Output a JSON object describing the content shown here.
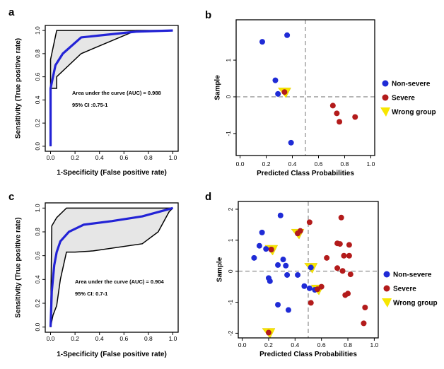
{
  "chart_data": [
    {
      "panel": "a",
      "type": "line",
      "title": "",
      "xlabel": "1-Specificity (False positive rate)",
      "ylabel": "Sensitivity (True positive rate)",
      "xlim": [
        0,
        1
      ],
      "ylim": [
        0,
        1
      ],
      "xticks": [
        "0.0",
        "0.2",
        "0.4",
        "0.6",
        "0.8",
        "1.0"
      ],
      "yticks": [
        "0.0",
        "0.2",
        "0.4",
        "0.6",
        "0.8",
        "1.0"
      ],
      "annotations": [
        "Area under the curve (AUC) = 0.988",
        "95% CI :0.75-1"
      ],
      "roc": [
        [
          0.0,
          0.0
        ],
        [
          0.0,
          0.5
        ],
        [
          0.02,
          0.6
        ],
        [
          0.04,
          0.7
        ],
        [
          0.1,
          0.8
        ],
        [
          0.25,
          0.94
        ],
        [
          0.7,
          0.99
        ],
        [
          1.0,
          1.0
        ]
      ],
      "ci_upper": [
        [
          0.0,
          0.0
        ],
        [
          0.0,
          0.75
        ],
        [
          0.05,
          1.0
        ],
        [
          1.0,
          1.0
        ]
      ],
      "ci_lower": [
        [
          0.0,
          0.0
        ],
        [
          0.0,
          0.5
        ],
        [
          0.03,
          0.5
        ],
        [
          0.05,
          0.5
        ],
        [
          0.05,
          0.6
        ],
        [
          0.25,
          0.8
        ],
        [
          0.7,
          1.0
        ],
        [
          1.0,
          1.0
        ]
      ],
      "roc_color": "#2323d6",
      "band_fill": "#e6e6e6"
    },
    {
      "panel": "b",
      "type": "scatter",
      "title": "",
      "xlabel": "Predicted Class Probabilities",
      "ylabel": "Sample",
      "xlim": [
        -0.03,
        1.03
      ],
      "ylim": [
        -1.6,
        2.1
      ],
      "xticks": [
        "0.0",
        "0.2",
        "0.4",
        "0.6",
        "0.8",
        "1.0"
      ],
      "yticks": [
        "-1",
        "0",
        "1"
      ],
      "legend": [
        "Non-severe",
        "Severe",
        "Wrong group"
      ],
      "legend_position": "right",
      "colors": {
        "non_severe": "#1f2bd6",
        "severe": "#b31b1b",
        "wrong": "#f7e600"
      },
      "vline": 0.5,
      "hline": 0,
      "non_severe": [
        [
          0.17,
          1.5
        ],
        [
          0.36,
          1.68
        ],
        [
          0.27,
          0.45
        ],
        [
          0.29,
          0.08
        ],
        [
          0.39,
          -1.25
        ]
      ],
      "severe": [
        [
          0.71,
          -0.24
        ],
        [
          0.74,
          -0.45
        ],
        [
          0.76,
          -0.68
        ],
        [
          0.88,
          -0.55
        ],
        [
          0.34,
          0.13
        ]
      ],
      "wrong_group": [
        [
          0.34,
          0.13
        ]
      ]
    },
    {
      "panel": "c",
      "type": "line",
      "title": "",
      "xlabel": "1-Specificity (False positive rate)",
      "ylabel": "Sensitivity (True positive rate)",
      "xlim": [
        0,
        1
      ],
      "ylim": [
        0,
        1
      ],
      "xticks": [
        "0.0",
        "0.2",
        "0.4",
        "0.6",
        "0.8",
        "1.0"
      ],
      "yticks": [
        "0.0",
        "0.2",
        "0.4",
        "0.6",
        "0.8",
        "1.0"
      ],
      "annotations": [
        "Area under the curve (AUC) = 0.904",
        "95% CI: 0.7-1"
      ],
      "roc": [
        [
          0.0,
          0.0
        ],
        [
          0.01,
          0.3
        ],
        [
          0.03,
          0.52
        ],
        [
          0.05,
          0.63
        ],
        [
          0.08,
          0.72
        ],
        [
          0.15,
          0.8
        ],
        [
          0.27,
          0.86
        ],
        [
          0.5,
          0.89
        ],
        [
          0.75,
          0.93
        ],
        [
          1.0,
          1.0
        ]
      ],
      "ci_upper": [
        [
          0.0,
          0.0
        ],
        [
          0.01,
          0.85
        ],
        [
          0.05,
          0.92
        ],
        [
          0.13,
          1.0
        ],
        [
          1.0,
          1.0
        ]
      ],
      "ci_lower": [
        [
          0.0,
          0.0
        ],
        [
          0.02,
          0.1
        ],
        [
          0.05,
          0.18
        ],
        [
          0.08,
          0.4
        ],
        [
          0.13,
          0.63
        ],
        [
          0.2,
          0.63
        ],
        [
          0.35,
          0.64
        ],
        [
          0.75,
          0.7
        ],
        [
          0.88,
          0.8
        ],
        [
          0.97,
          0.97
        ],
        [
          1.0,
          1.0
        ]
      ],
      "roc_color": "#2323d6",
      "band_fill": "#e6e6e6"
    },
    {
      "panel": "d",
      "type": "scatter",
      "title": "",
      "xlabel": "Predicted Class Probabilities",
      "ylabel": "Sample",
      "xlim": [
        -0.03,
        1.03
      ],
      "ylim": [
        -2.15,
        2.25
      ],
      "xticks": [
        "0.0",
        "0.2",
        "0.4",
        "0.6",
        "0.8",
        "1.0"
      ],
      "yticks": [
        "-2",
        "-1",
        "0",
        "1",
        "2"
      ],
      "legend": [
        "Non-severe",
        "Severe",
        "Wrong group"
      ],
      "legend_position": "right",
      "colors": {
        "non_severe": "#1f2bd6",
        "severe": "#b31b1b",
        "wrong": "#f7e600"
      },
      "vline": 0.5,
      "hline": 0,
      "non_severe": [
        [
          0.29,
          1.8
        ],
        [
          0.15,
          1.25
        ],
        [
          0.13,
          0.82
        ],
        [
          0.18,
          0.72
        ],
        [
          0.09,
          0.43
        ],
        [
          0.31,
          0.38
        ],
        [
          0.27,
          0.2
        ],
        [
          0.33,
          0.18
        ],
        [
          0.52,
          0.12
        ],
        [
          0.2,
          -0.22
        ],
        [
          0.34,
          -0.12
        ],
        [
          0.42,
          -0.12
        ],
        [
          0.21,
          -0.32
        ],
        [
          0.47,
          -0.48
        ],
        [
          0.51,
          -0.55
        ],
        [
          0.55,
          -0.6
        ],
        [
          0.27,
          -1.08
        ],
        [
          0.35,
          -1.25
        ],
        [
          0.22,
          0.7
        ],
        [
          0.42,
          1.22
        ]
      ],
      "severe": [
        [
          0.51,
          1.58
        ],
        [
          0.75,
          1.73
        ],
        [
          0.72,
          0.9
        ],
        [
          0.81,
          0.85
        ],
        [
          0.74,
          0.88
        ],
        [
          0.44,
          1.3
        ],
        [
          0.64,
          0.43
        ],
        [
          0.77,
          0.5
        ],
        [
          0.81,
          0.5
        ],
        [
          0.72,
          0.1
        ],
        [
          0.82,
          -0.1
        ],
        [
          0.76,
          0.01
        ],
        [
          0.6,
          -0.5
        ],
        [
          0.8,
          -0.72
        ],
        [
          0.78,
          -0.77
        ],
        [
          0.52,
          -1.02
        ],
        [
          0.93,
          -1.17
        ],
        [
          0.92,
          -1.68
        ],
        [
          0.2,
          -1.98
        ],
        [
          0.57,
          -0.58
        ],
        [
          0.22,
          0.7
        ],
        [
          0.42,
          1.22
        ]
      ],
      "wrong_group": [
        [
          0.22,
          0.7
        ],
        [
          0.42,
          1.22
        ],
        [
          0.52,
          0.12
        ],
        [
          0.57,
          -0.58
        ],
        [
          0.2,
          -1.98
        ]
      ]
    }
  ]
}
